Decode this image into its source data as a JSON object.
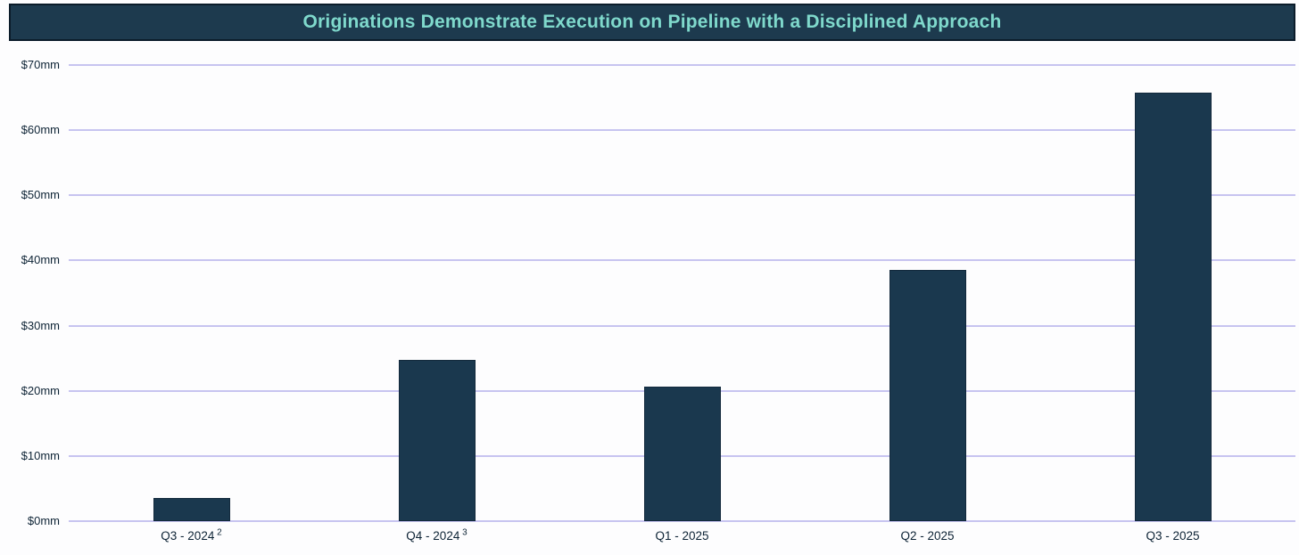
{
  "header": {
    "title": "Originations Demonstrate Execution on Pipeline with a Disciplined Approach"
  },
  "colors": {
    "background": "#fdfdfe",
    "title_bar_bg": "#1d3a4e",
    "title_bar_border": "#0b1c2a",
    "title_text": "#7fd9cc",
    "bar_fill": "#1a384e",
    "bar_border": "#13293c",
    "gridline": "#c7c4f0",
    "axis_text": "#0d2335"
  },
  "chart_data": {
    "type": "bar",
    "title": "Originations Demonstrate Execution on Pipeline with a Disciplined Approach",
    "categories": [
      "Q3 - 2024",
      "Q4 - 2024",
      "Q1 - 2025",
      "Q2 - 2025",
      "Q3 - 2025"
    ],
    "category_footnote_superscripts": [
      "2",
      "3",
      "",
      "",
      ""
    ],
    "values": [
      3.5,
      24.8,
      20.6,
      38.5,
      65.8
    ],
    "unit": "$mm",
    "xlabel": "",
    "ylabel": "",
    "ylim": [
      0,
      70
    ],
    "y_tick_step": 10,
    "y_tick_labels": [
      "$0mm",
      "$10mm",
      "$20mm",
      "$30mm",
      "$40mm",
      "$50mm",
      "$60mm",
      "$70mm"
    ],
    "grid": true,
    "legend": false
  }
}
